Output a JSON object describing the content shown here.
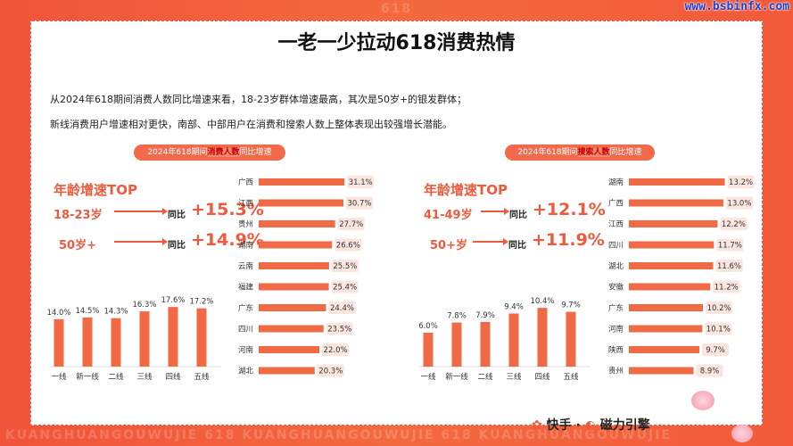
{
  "watermark_top": "618",
  "watermark_bottom": "KUANGHUANGOUWUJIE   618   KUANGHUANGOUWUJIE   618   KUANGHUANGOUWUJIE",
  "site_url": "www.bsbinfx.com",
  "title": "一老一少拉动618消费热情",
  "desc_line1": "从2024年618期间消费人数同比增速来看，18-23岁群体增速最高，其次是50岁+的银发群体；",
  "desc_line2": "新线消费用户增速相对更快，南部、中部用户在消费和搜索人数上整体表现出较强增长潜能。",
  "left_panel": {
    "pill_prefix": "2024年618期间",
    "pill_highlight": "消费人数",
    "pill_suffix": "同比增速",
    "age_title": "年龄增速TOP",
    "age_rows": [
      {
        "label": "18-23岁",
        "yoy": "同比",
        "value": "+15.3%"
      },
      {
        "label": "50岁+",
        "yoy": "同比",
        "value": "+14.9%"
      }
    ]
  },
  "right_panel": {
    "pill_prefix": "2024年618期间",
    "pill_highlight": "搜索人数",
    "pill_suffix": "同比增速",
    "age_title": "年龄增速TOP",
    "age_rows": [
      {
        "label": "41-49岁",
        "yoy": "同比",
        "value": "+12.1%"
      },
      {
        "label": "50+岁",
        "yoy": "同比",
        "value": "+11.9%"
      }
    ]
  },
  "footer": {
    "brand1": "快手",
    "separator": "·",
    "brand2": "磁力引擎"
  },
  "colors": {
    "accent": "#f05a3c",
    "bar": "#f06a45",
    "bg": "#f36a3f"
  },
  "chart_data": [
    {
      "type": "bar",
      "categories": [
        "一线",
        "新一线",
        "二线",
        "三线",
        "四线",
        "五线"
      ],
      "values": [
        14.0,
        14.5,
        14.3,
        16.3,
        17.6,
        17.2
      ],
      "labels": [
        "14.0%",
        "14.5%",
        "14.3%",
        "16.3%",
        "17.6%",
        "17.2%"
      ],
      "ylim": [
        0,
        20
      ]
    },
    {
      "type": "bar",
      "orientation": "horizontal",
      "categories": [
        "广西",
        "江西",
        "贵州",
        "湖南",
        "云南",
        "福建",
        "广东",
        "四川",
        "河南",
        "湖北"
      ],
      "values": [
        31.1,
        30.7,
        27.7,
        26.6,
        25.5,
        25.4,
        24.4,
        23.5,
        22.0,
        20.3
      ],
      "labels": [
        "31.1%",
        "30.7%",
        "27.7%",
        "26.6%",
        "25.5%",
        "25.4%",
        "24.4%",
        "23.5%",
        "22.0%",
        "20.3%"
      ],
      "xlim": [
        0,
        32
      ]
    },
    {
      "type": "bar",
      "categories": [
        "一线",
        "新一线",
        "二线",
        "三线",
        "四线",
        "五线"
      ],
      "values": [
        6.0,
        7.8,
        7.9,
        9.4,
        10.4,
        9.7
      ],
      "labels": [
        "6.0%",
        "7.8%",
        "7.9%",
        "9.4%",
        "10.4%",
        "9.7%"
      ],
      "ylim": [
        0,
        12
      ]
    },
    {
      "type": "bar",
      "orientation": "horizontal",
      "categories": [
        "湖南",
        "广西",
        "江西",
        "四川",
        "湖北",
        "安徽",
        "广东",
        "河南",
        "陕西",
        "贵州"
      ],
      "values": [
        13.2,
        13.0,
        12.2,
        11.7,
        11.6,
        11.2,
        10.2,
        10.1,
        9.7,
        8.9
      ],
      "labels": [
        "13.2%",
        "13.0%",
        "12.2%",
        "11.7%",
        "11.6%",
        "11.2%",
        "10.2%",
        "10.1%",
        "9.7%",
        "8.9%"
      ],
      "xlim": [
        0,
        13.5
      ]
    }
  ]
}
